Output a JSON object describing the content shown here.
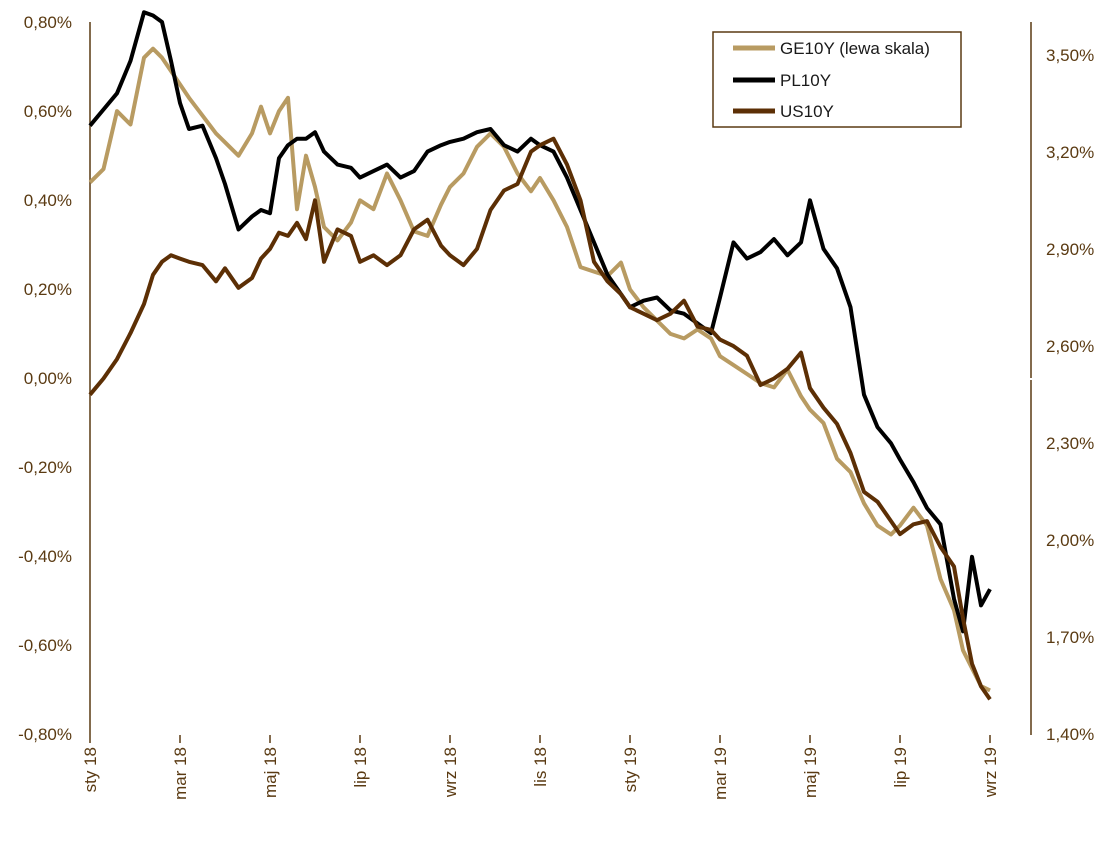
{
  "chart_data": {
    "type": "line",
    "title": "",
    "xlabel": "",
    "ylabel": "",
    "ylabel_right": "",
    "ylim": [
      -0.8,
      0.8
    ],
    "ylim_right": [
      1.4,
      3.6
    ],
    "grid": false,
    "legend_position": "top-right",
    "left_ticks": [
      "0,80%",
      "0,60%",
      "0,40%",
      "0,20%",
      "0,00%",
      "-0,20%",
      "-0,40%",
      "-0,60%",
      "-0,80%"
    ],
    "left_tick_values": [
      0.8,
      0.6,
      0.4,
      0.2,
      0.0,
      -0.2,
      -0.4,
      -0.6,
      -0.8
    ],
    "right_ticks": [
      "3,50%",
      "3,20%",
      "2,90%",
      "2,60%",
      "2,30%",
      "2,00%",
      "1,70%",
      "1,40%"
    ],
    "right_tick_values": [
      3.5,
      3.2,
      2.9,
      2.6,
      2.3,
      2.0,
      1.7,
      1.4
    ],
    "x_ticks": [
      "sty 18",
      "mar 18",
      "maj 18",
      "lip 18",
      "wrz 18",
      "lis 18",
      "sty 19",
      "mar 19",
      "maj 19",
      "lip 19",
      "wrz 19"
    ],
    "x_tick_months": [
      0,
      2,
      4,
      6,
      8,
      10,
      12,
      14,
      16,
      18,
      20
    ],
    "x_range_months": [
      0,
      20
    ],
    "series": [
      {
        "name": "GE10Y (lewa skala)",
        "axis": "left",
        "color": "#b89b62",
        "x": [
          0,
          0.3,
          0.6,
          0.9,
          1.2,
          1.4,
          1.6,
          1.8,
          2.0,
          2.2,
          2.5,
          2.8,
          3.0,
          3.3,
          3.6,
          3.8,
          4.0,
          4.2,
          4.4,
          4.6,
          4.8,
          5.0,
          5.2,
          5.5,
          5.8,
          6.0,
          6.3,
          6.6,
          6.9,
          7.2,
          7.5,
          7.8,
          8.0,
          8.3,
          8.6,
          8.9,
          9.2,
          9.5,
          9.8,
          10.0,
          10.3,
          10.6,
          10.9,
          11.2,
          11.5,
          11.8,
          12.0,
          12.3,
          12.6,
          12.9,
          13.2,
          13.5,
          13.8,
          14.0,
          14.3,
          14.6,
          14.9,
          15.2,
          15.5,
          15.8,
          16.0,
          16.3,
          16.6,
          16.9,
          17.2,
          17.5,
          17.8,
          18.0,
          18.3,
          18.6,
          18.9,
          19.2,
          19.4,
          19.6,
          19.8,
          20.0
        ],
        "values": [
          0.44,
          0.47,
          0.6,
          0.57,
          0.72,
          0.74,
          0.72,
          0.69,
          0.66,
          0.63,
          0.59,
          0.55,
          0.53,
          0.5,
          0.55,
          0.61,
          0.55,
          0.6,
          0.63,
          0.38,
          0.5,
          0.43,
          0.34,
          0.31,
          0.35,
          0.4,
          0.38,
          0.46,
          0.4,
          0.33,
          0.32,
          0.39,
          0.43,
          0.46,
          0.52,
          0.55,
          0.52,
          0.46,
          0.42,
          0.45,
          0.4,
          0.34,
          0.25,
          0.24,
          0.23,
          0.26,
          0.2,
          0.16,
          0.13,
          0.1,
          0.09,
          0.11,
          0.09,
          0.05,
          0.03,
          0.01,
          -0.01,
          -0.02,
          0.02,
          -0.04,
          -0.07,
          -0.1,
          -0.18,
          -0.21,
          -0.28,
          -0.33,
          -0.35,
          -0.33,
          -0.29,
          -0.33,
          -0.45,
          -0.52,
          -0.61,
          -0.65,
          -0.69,
          -0.7
        ]
      },
      {
        "name": "PL10Y",
        "axis": "right",
        "color": "#000000",
        "x": [
          0,
          0.3,
          0.6,
          0.9,
          1.2,
          1.4,
          1.6,
          1.8,
          2.0,
          2.2,
          2.5,
          2.8,
          3.0,
          3.3,
          3.6,
          3.8,
          4.0,
          4.2,
          4.4,
          4.6,
          4.8,
          5.0,
          5.2,
          5.5,
          5.8,
          6.0,
          6.3,
          6.6,
          6.9,
          7.2,
          7.5,
          7.8,
          8.0,
          8.3,
          8.6,
          8.9,
          9.2,
          9.5,
          9.8,
          10.0,
          10.3,
          10.6,
          10.9,
          11.2,
          11.5,
          11.8,
          12.0,
          12.3,
          12.6,
          12.9,
          13.2,
          13.5,
          13.8,
          14.0,
          14.3,
          14.6,
          14.9,
          15.2,
          15.5,
          15.8,
          16.0,
          16.3,
          16.6,
          16.9,
          17.2,
          17.5,
          17.8,
          18.0,
          18.3,
          18.6,
          18.9,
          19.2,
          19.4,
          19.6,
          19.8,
          20.0
        ],
        "values": [
          3.28,
          3.33,
          3.38,
          3.48,
          3.63,
          3.62,
          3.6,
          3.48,
          3.35,
          3.27,
          3.28,
          3.18,
          3.1,
          2.96,
          3.0,
          3.02,
          3.01,
          3.18,
          3.22,
          3.24,
          3.24,
          3.26,
          3.2,
          3.16,
          3.15,
          3.12,
          3.14,
          3.16,
          3.12,
          3.14,
          3.2,
          3.22,
          3.23,
          3.24,
          3.26,
          3.27,
          3.22,
          3.2,
          3.24,
          3.22,
          3.2,
          3.12,
          3.02,
          2.92,
          2.82,
          2.76,
          2.72,
          2.74,
          2.75,
          2.71,
          2.7,
          2.67,
          2.64,
          2.75,
          2.92,
          2.87,
          2.89,
          2.93,
          2.88,
          2.92,
          3.05,
          2.9,
          2.84,
          2.72,
          2.45,
          2.35,
          2.3,
          2.25,
          2.18,
          2.1,
          2.05,
          1.82,
          1.72,
          1.95,
          1.8,
          1.85
        ]
      },
      {
        "name": "US10Y",
        "axis": "right",
        "color": "#5c2f05",
        "x": [
          0,
          0.3,
          0.6,
          0.9,
          1.2,
          1.4,
          1.6,
          1.8,
          2.0,
          2.2,
          2.5,
          2.8,
          3.0,
          3.3,
          3.6,
          3.8,
          4.0,
          4.2,
          4.4,
          4.6,
          4.8,
          5.0,
          5.2,
          5.5,
          5.8,
          6.0,
          6.3,
          6.6,
          6.9,
          7.2,
          7.5,
          7.8,
          8.0,
          8.3,
          8.6,
          8.9,
          9.2,
          9.5,
          9.8,
          10.0,
          10.3,
          10.6,
          10.9,
          11.2,
          11.5,
          11.8,
          12.0,
          12.3,
          12.6,
          12.9,
          13.2,
          13.5,
          13.8,
          14.0,
          14.3,
          14.6,
          14.9,
          15.2,
          15.5,
          15.8,
          16.0,
          16.3,
          16.6,
          16.9,
          17.2,
          17.5,
          17.8,
          18.0,
          18.3,
          18.6,
          18.9,
          19.2,
          19.4,
          19.6,
          19.8,
          20.0
        ],
        "values": [
          2.45,
          2.5,
          2.56,
          2.64,
          2.73,
          2.82,
          2.86,
          2.88,
          2.87,
          2.86,
          2.85,
          2.8,
          2.84,
          2.78,
          2.81,
          2.87,
          2.9,
          2.95,
          2.94,
          2.98,
          2.93,
          3.05,
          2.86,
          2.96,
          2.94,
          2.86,
          2.88,
          2.85,
          2.88,
          2.96,
          2.99,
          2.91,
          2.88,
          2.85,
          2.9,
          3.02,
          3.08,
          3.1,
          3.2,
          3.22,
          3.24,
          3.16,
          3.05,
          2.86,
          2.8,
          2.76,
          2.72,
          2.7,
          2.68,
          2.7,
          2.74,
          2.66,
          2.65,
          2.62,
          2.6,
          2.57,
          2.48,
          2.5,
          2.53,
          2.58,
          2.47,
          2.41,
          2.36,
          2.27,
          2.15,
          2.12,
          2.06,
          2.02,
          2.05,
          2.06,
          1.98,
          1.92,
          1.76,
          1.62,
          1.55,
          1.51
        ]
      }
    ]
  }
}
